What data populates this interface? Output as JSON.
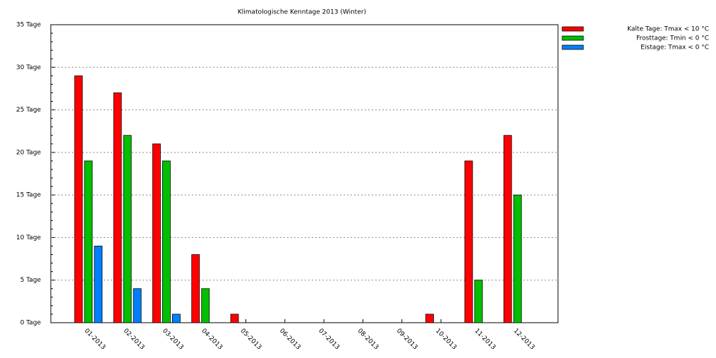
{
  "chart_data": {
    "type": "bar",
    "title": "Klimatologische Kenntage 2013 (Winter)",
    "categories": [
      "01-2013",
      "02-2013",
      "03-2013",
      "04-2013",
      "05-2013",
      "06-2013",
      "07-2013",
      "08-2013",
      "09-2013",
      "10-2013",
      "11-2013",
      "12-2013"
    ],
    "series": [
      {
        "name": "Kalte Tage: Tmax < 10 °C",
        "color": "#ff0000",
        "values": [
          29,
          27,
          21,
          8,
          1,
          0,
          0,
          0,
          0,
          1,
          19,
          22
        ]
      },
      {
        "name": "Frosttage: Tmin < 0 °C",
        "color": "#00c000",
        "values": [
          19,
          22,
          19,
          4,
          0,
          0,
          0,
          0,
          0,
          0,
          5,
          15
        ]
      },
      {
        "name": "Eistage: Tmax < 0 °C",
        "color": "#0080ff",
        "values": [
          9,
          4,
          1,
          0,
          0,
          0,
          0,
          0,
          0,
          0,
          0,
          0
        ]
      }
    ],
    "ylim": [
      0,
      35
    ],
    "yticks": [
      {
        "value": 0,
        "label": "0 Tage"
      },
      {
        "value": 5,
        "label": "5 Tage"
      },
      {
        "value": 10,
        "label": "10 Tage"
      },
      {
        "value": 15,
        "label": "15 Tage"
      },
      {
        "value": 20,
        "label": "20 Tage"
      },
      {
        "value": 25,
        "label": "25 Tage"
      },
      {
        "value": 30,
        "label": "30 Tage"
      },
      {
        "value": 35,
        "label": "35 Tage"
      }
    ],
    "grid": true,
    "legend": "top-right"
  }
}
